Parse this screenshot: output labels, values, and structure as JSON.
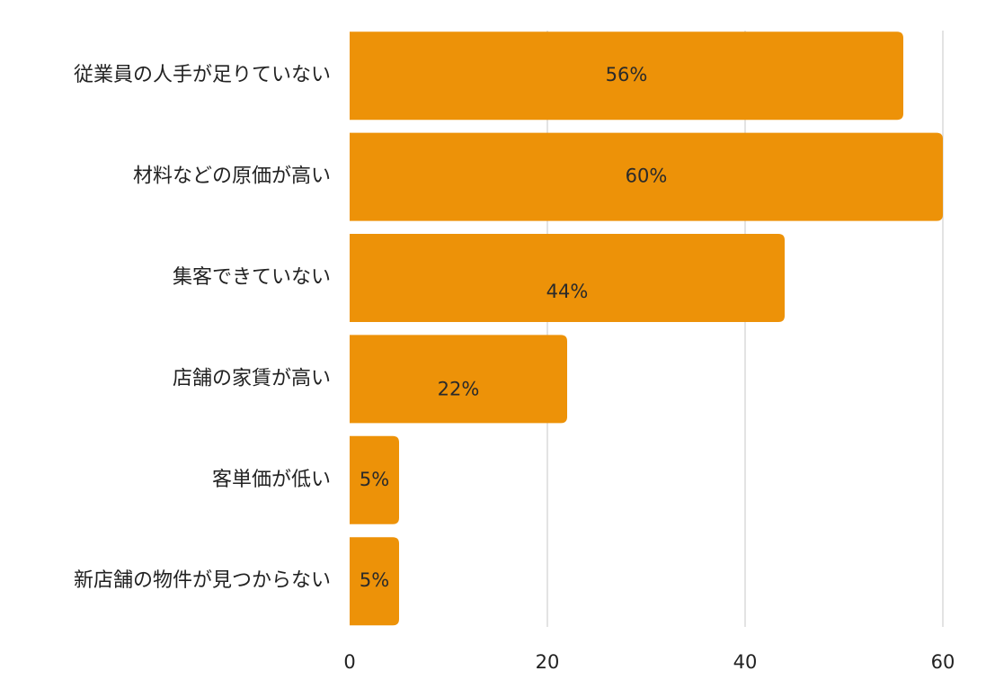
{
  "chart_data": {
    "type": "bar",
    "orientation": "horizontal",
    "categories": [
      "従業員の人手が足りていない",
      "材料などの原価が高い",
      "集客できていない",
      "店舗の家賃が高い",
      "客単価が低い",
      "新店舗の物件が見つからない"
    ],
    "values": [
      56,
      60,
      44,
      22,
      5,
      5
    ],
    "data_labels": [
      "56%",
      "60%",
      "44%",
      "22%",
      "5%",
      "5%"
    ],
    "xticks": [
      0,
      20,
      40,
      60
    ],
    "xlim": [
      0,
      60
    ],
    "grid": true,
    "bar_color": "#ED9208",
    "grid_color": "#D0D0D0",
    "text_color": "#222222"
  }
}
